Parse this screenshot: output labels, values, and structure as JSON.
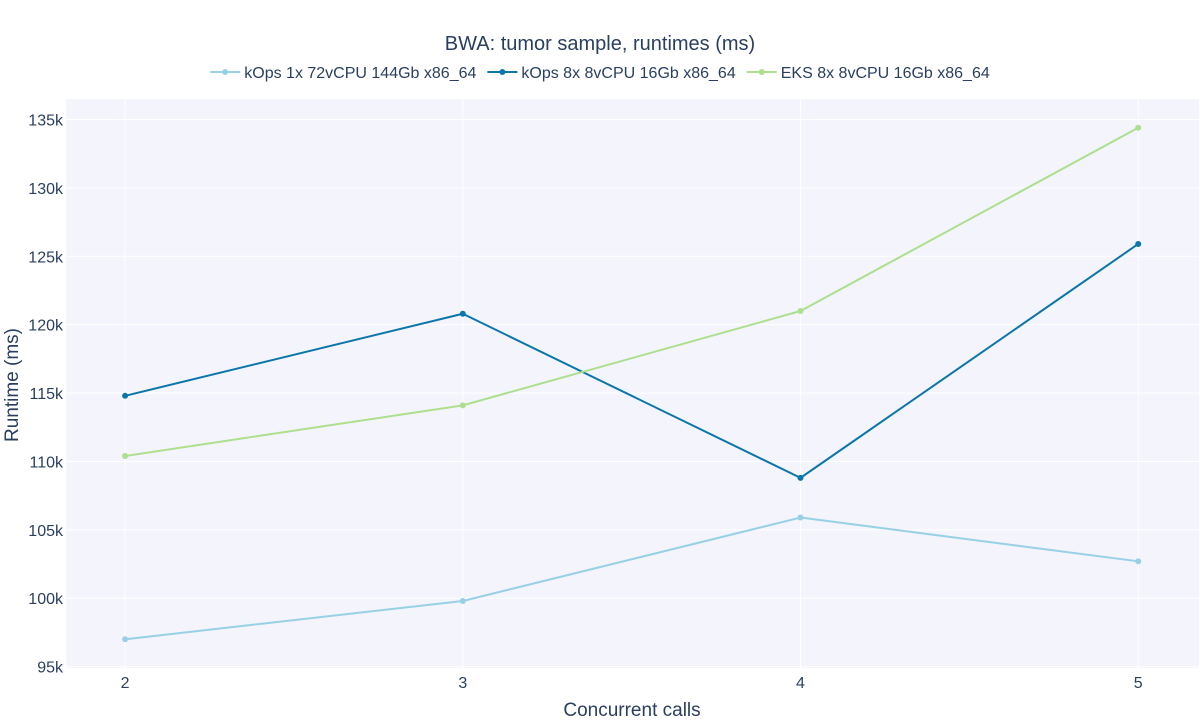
{
  "chart_data": {
    "type": "line",
    "title": "BWA: tumor sample, runtimes (ms)",
    "xlabel": "Concurrent calls",
    "ylabel": "Runtime (ms)",
    "x": [
      2,
      3,
      4,
      5
    ],
    "x_tick_labels": [
      "2",
      "3",
      "4",
      "5"
    ],
    "xlim": [
      1.825,
      5.18
    ],
    "ylim": [
      94900,
      136500
    ],
    "y_ticks": [
      95000,
      100000,
      105000,
      110000,
      115000,
      120000,
      125000,
      130000,
      135000
    ],
    "y_tick_labels": [
      "95k",
      "100k",
      "105k",
      "110k",
      "115k",
      "120k",
      "125k",
      "130k",
      "135k"
    ],
    "grid": true,
    "legend_position": "top-center",
    "plot_background": "#f3f4fc",
    "series": [
      {
        "name": "kOps 1x 72vCPU 144Gb x86_64",
        "color": "#98d0e6",
        "values": [
          97000,
          99800,
          105900,
          102700
        ]
      },
      {
        "name": "kOps 8x 8vCPU 16Gb x86_64",
        "color": "#0a76aa",
        "values": [
          114800,
          120800,
          108800,
          125900
        ]
      },
      {
        "name": "EKS 8x 8vCPU 16Gb x86_64",
        "color": "#addf8f",
        "values": [
          110400,
          114100,
          121000,
          134400
        ]
      }
    ]
  }
}
